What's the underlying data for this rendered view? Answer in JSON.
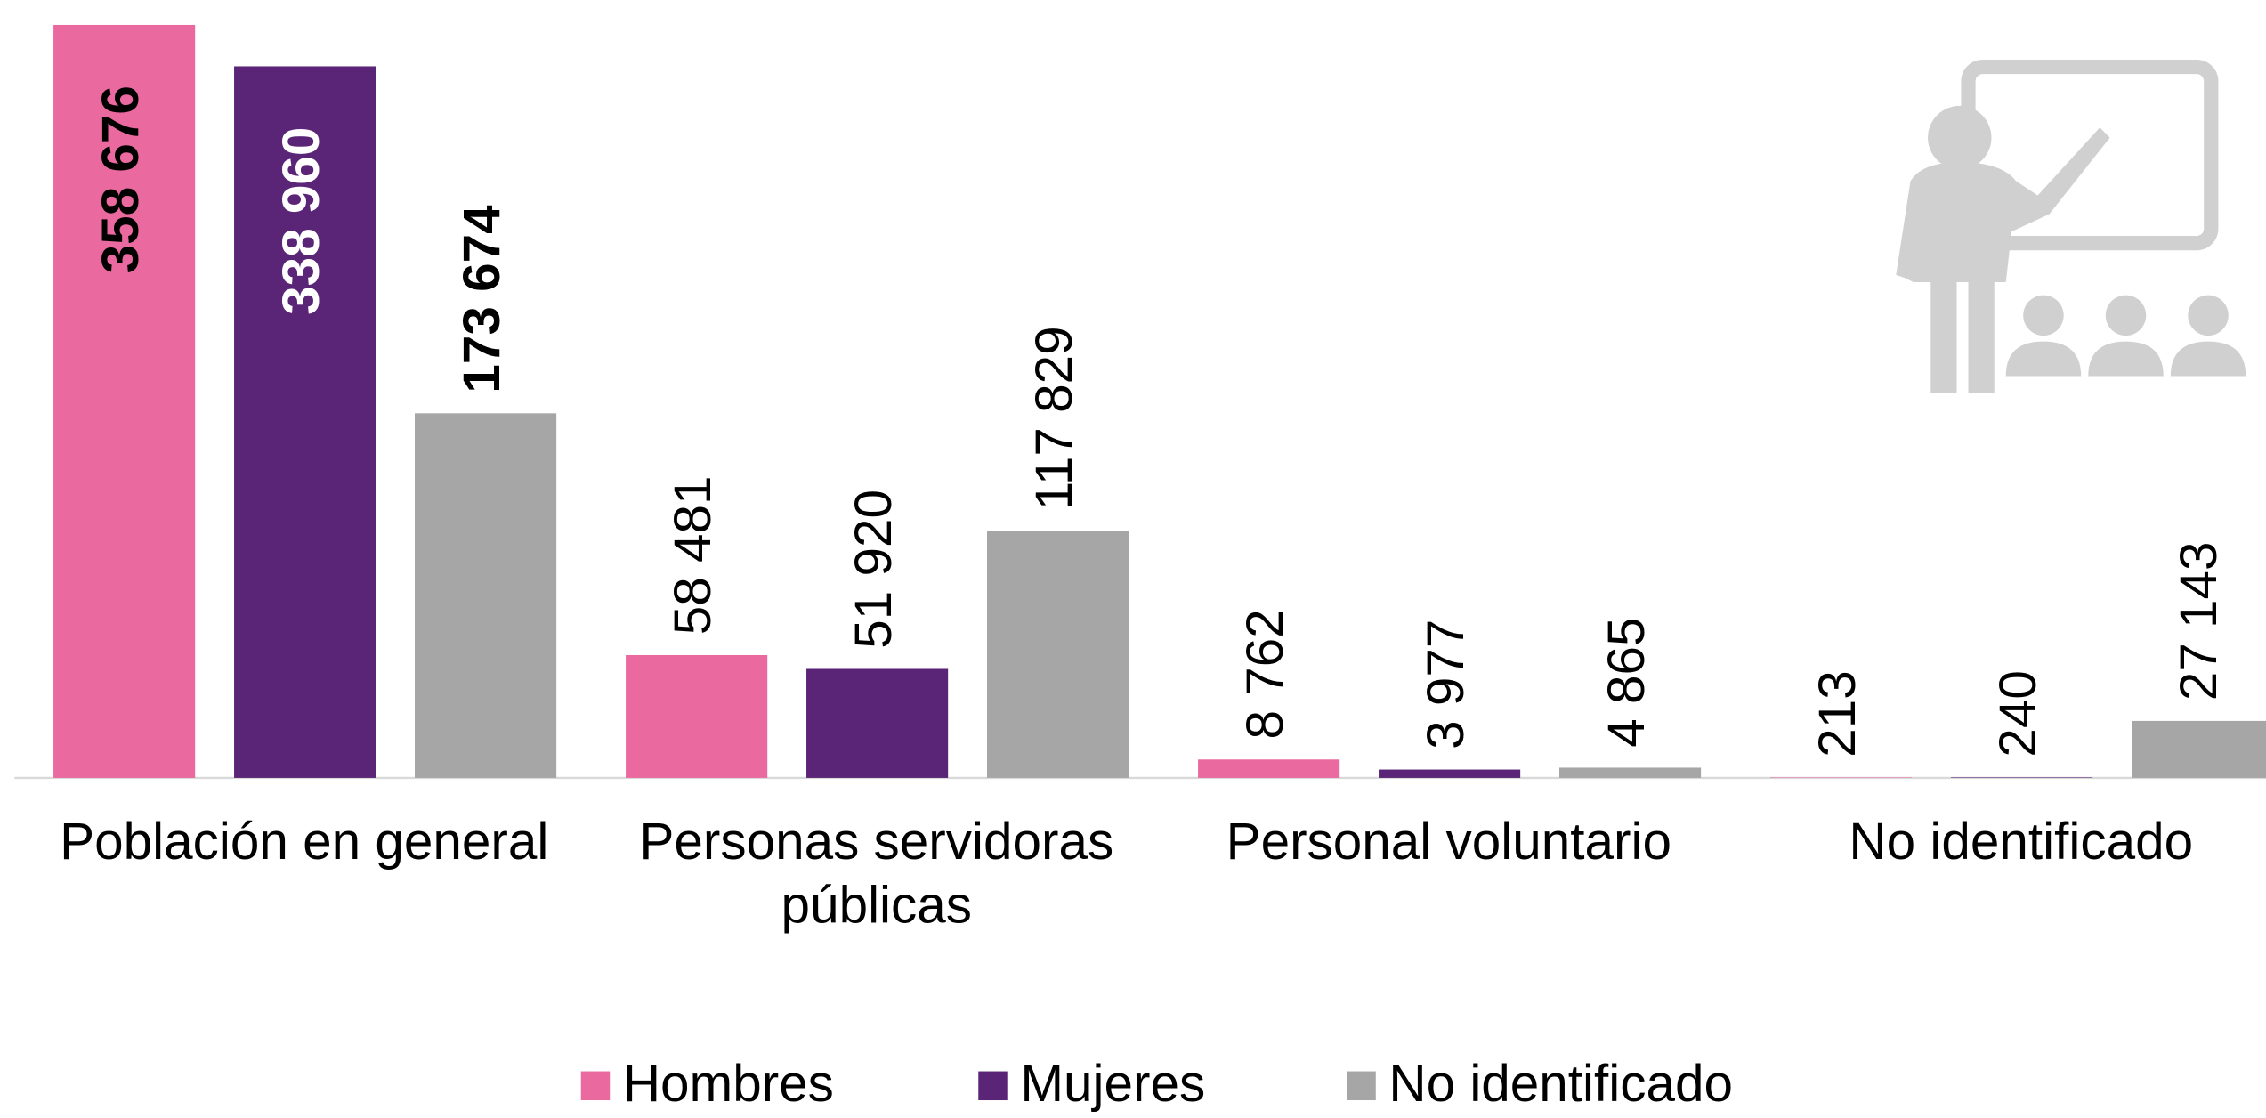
{
  "chart_data": {
    "type": "bar",
    "categories": [
      "Población en general",
      "Personas servidoras públicas",
      "Personal voluntario",
      "No identificado"
    ],
    "series": [
      {
        "name": "Hombres",
        "color": "#ea699f",
        "values": [
          358676,
          58481,
          8762,
          213
        ],
        "value_labels": [
          "358 676",
          "58 481",
          "8 762",
          "213"
        ]
      },
      {
        "name": "Mujeres",
        "color": "#5a2577",
        "values": [
          338960,
          51920,
          3977,
          240
        ],
        "value_labels": [
          "338 960",
          "51 920",
          "3 977",
          "240"
        ]
      },
      {
        "name": "No identificado",
        "color": "#a6a6a6",
        "values": [
          173674,
          117829,
          4865,
          27143
        ],
        "value_labels": [
          "173 674",
          "117 829",
          "4 865",
          "27 143"
        ]
      }
    ],
    "legend": "bottom"
  }
}
